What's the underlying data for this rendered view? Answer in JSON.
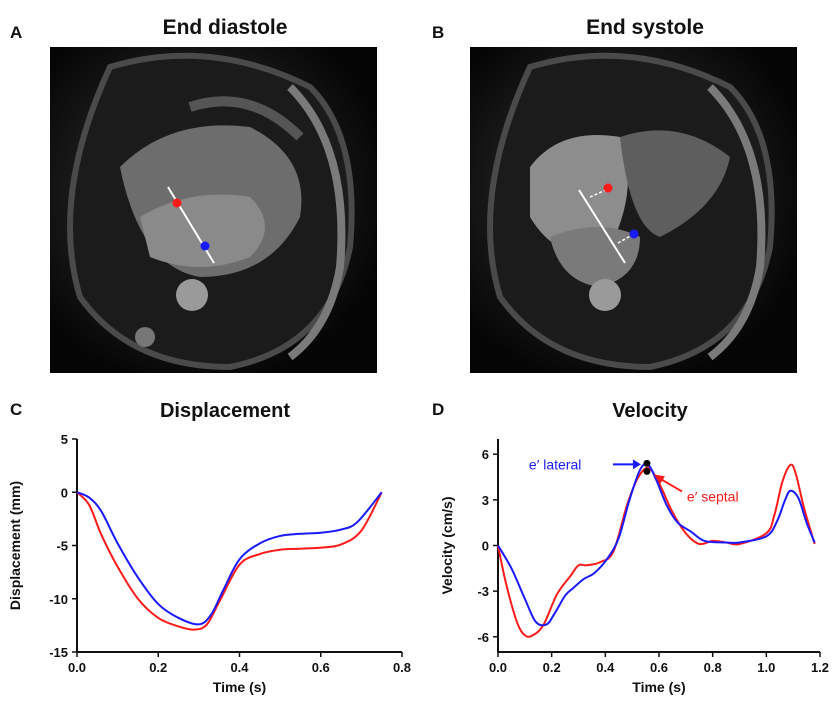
{
  "panels": {
    "a": {
      "letter": "A",
      "title": "End diastole"
    },
    "b": {
      "letter": "B",
      "title": "End systole"
    },
    "c": {
      "letter": "C",
      "title": "Displacement"
    },
    "d": {
      "letter": "D",
      "title": "Velocity"
    }
  },
  "colors": {
    "lateral": "#1a1aff",
    "septal": "#ff1a1a",
    "annotation_point": "#000000"
  },
  "chart_data": [
    {
      "type": "line",
      "title": "Displacement",
      "xlabel": "Time (s)",
      "ylabel": "Displacement (mm)",
      "xlim": [
        0,
        0.8
      ],
      "ylim": [
        -15,
        5
      ],
      "xticks": [
        "0.0",
        "0.2",
        "0.4",
        "0.6",
        "0.8"
      ],
      "yticks": [
        "5",
        "0",
        "-5",
        "-10",
        "-15"
      ],
      "xtick_values": [
        0,
        0.2,
        0.4,
        0.6,
        0.8
      ],
      "ytick_values": [
        5,
        0,
        -5,
        -10,
        -15
      ],
      "series": [
        {
          "color": "#ff1a1a",
          "x": [
            0,
            0.03,
            0.06,
            0.1,
            0.15,
            0.2,
            0.25,
            0.29,
            0.32,
            0.35,
            0.4,
            0.45,
            0.5,
            0.55,
            0.6,
            0.65,
            0.7,
            0.75
          ],
          "y": [
            0,
            -1.2,
            -4,
            -7,
            -10,
            -11.8,
            -12.6,
            -12.9,
            -12.4,
            -10.3,
            -6.8,
            -5.8,
            -5.4,
            -5.3,
            -5.2,
            -4.9,
            -3.6,
            0
          ]
        },
        {
          "color": "#1a1aff",
          "x": [
            0,
            0.03,
            0.06,
            0.1,
            0.15,
            0.2,
            0.25,
            0.3,
            0.33,
            0.36,
            0.4,
            0.45,
            0.5,
            0.55,
            0.6,
            0.65,
            0.69,
            0.75
          ],
          "y": [
            0,
            -0.5,
            -1.8,
            -4.8,
            -8,
            -10.5,
            -11.8,
            -12.4,
            -11.5,
            -9.2,
            -6.3,
            -4.8,
            -4.1,
            -3.9,
            -3.8,
            -3.5,
            -2.8,
            0
          ]
        }
      ]
    },
    {
      "type": "line",
      "title": "Velocity",
      "xlabel": "Time (s)",
      "ylabel": "Velocity (cm/s)",
      "xlim": [
        0,
        1.2
      ],
      "ylim": [
        -7,
        7
      ],
      "xticks": [
        "0.0",
        "0.2",
        "0.4",
        "0.6",
        "0.8",
        "1.0",
        "1.2"
      ],
      "yticks": [
        "6",
        "3",
        "0",
        "-3",
        "-6"
      ],
      "xtick_values": [
        0,
        0.2,
        0.4,
        0.6,
        0.8,
        1.0,
        1.2
      ],
      "ytick_values": [
        6,
        3,
        0,
        -3,
        -6
      ],
      "series": [
        {
          "color": "#ff1a1a",
          "x": [
            0,
            0.03,
            0.07,
            0.1,
            0.13,
            0.17,
            0.22,
            0.27,
            0.3,
            0.33,
            0.38,
            0.43,
            0.48,
            0.52,
            0.56,
            0.6,
            0.65,
            0.7,
            0.75,
            0.8,
            0.85,
            0.9,
            1.0,
            1.03,
            1.06,
            1.09,
            1.11,
            1.14,
            1.18
          ],
          "y": [
            0,
            -2.5,
            -5,
            -5.9,
            -5.9,
            -5.2,
            -3.2,
            -2,
            -1.3,
            -1.3,
            -1.1,
            -0.4,
            2.6,
            4.4,
            5.1,
            4.1,
            2.2,
            0.8,
            0.1,
            0.3,
            0.2,
            0.1,
            0.8,
            2,
            4.2,
            5.3,
            4.7,
            2.5,
            0.1
          ]
        },
        {
          "color": "#1a1aff",
          "x": [
            0,
            0.05,
            0.1,
            0.14,
            0.18,
            0.21,
            0.25,
            0.28,
            0.32,
            0.36,
            0.41,
            0.45,
            0.49,
            0.53,
            0.56,
            0.59,
            0.63,
            0.67,
            0.72,
            0.77,
            0.85,
            0.9,
            1.0,
            1.04,
            1.07,
            1.09,
            1.12,
            1.15,
            1.18
          ],
          "y": [
            0,
            -1.5,
            -3.5,
            -5,
            -5.2,
            -4.5,
            -3.3,
            -2.8,
            -2.2,
            -1.8,
            -0.8,
            0.5,
            3,
            5,
            5.3,
            4.3,
            2.6,
            1.5,
            0.9,
            0.3,
            0.2,
            0.2,
            0.6,
            1.6,
            3,
            3.6,
            3.1,
            1.5,
            0.2
          ]
        }
      ],
      "annotations": [
        {
          "label": "e′ lateral",
          "x": 0.555,
          "y": 5.4,
          "color": "#1a1aff"
        },
        {
          "label": "e′ septal",
          "x": 0.555,
          "y": 5.0,
          "color": "#ff1a1a"
        }
      ]
    }
  ]
}
